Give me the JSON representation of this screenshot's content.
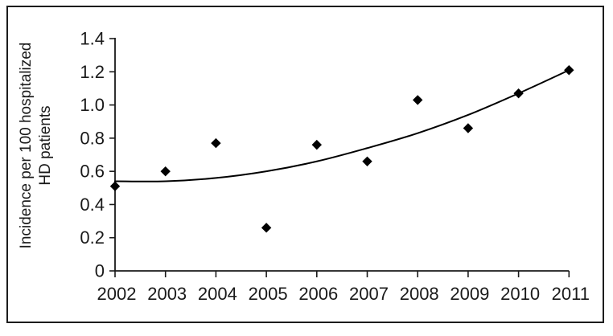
{
  "figure": {
    "background": "#ffffff",
    "border_color": "#1c1c1c",
    "axis_color": "#1a1a1a",
    "text_color": "#1a1a1a"
  },
  "chart_data": {
    "type": "scatter",
    "title": "",
    "xlabel": "",
    "ylabel_line1": "Incidence per 100 hospitalized",
    "ylabel_line2": "HD patients",
    "x": [
      2002,
      2003,
      2004,
      2005,
      2006,
      2007,
      2008,
      2009,
      2010,
      2011
    ],
    "x_labels": [
      "2002",
      "2003",
      "2004",
      "2005",
      "2006",
      "2007",
      "2008",
      "2009",
      "2010",
      "2011"
    ],
    "values": [
      0.51,
      0.6,
      0.77,
      0.26,
      0.76,
      0.66,
      1.03,
      0.86,
      1.07,
      1.21
    ],
    "series_name": "Incidence per 100 hospitalized HD patients",
    "trendline": {
      "type": "polynomial-fit",
      "values_by_year": [
        0.54,
        0.54,
        0.56,
        0.6,
        0.66,
        0.74,
        0.83,
        0.94,
        1.07,
        1.21
      ],
      "color": "#000000"
    },
    "ylim": [
      0,
      1.4
    ],
    "xlim": [
      2002,
      2011
    ],
    "yticks": [
      0,
      0.2,
      0.4,
      0.6,
      0.8,
      1.0,
      1.2,
      1.4
    ],
    "ytick_labels": [
      "0",
      "0.2",
      "0.4",
      "0.6",
      "0.8",
      "1.0",
      "1.2",
      "1.4"
    ],
    "marker": "diamond",
    "marker_color": "#000000",
    "grid": false,
    "legend": "none"
  }
}
